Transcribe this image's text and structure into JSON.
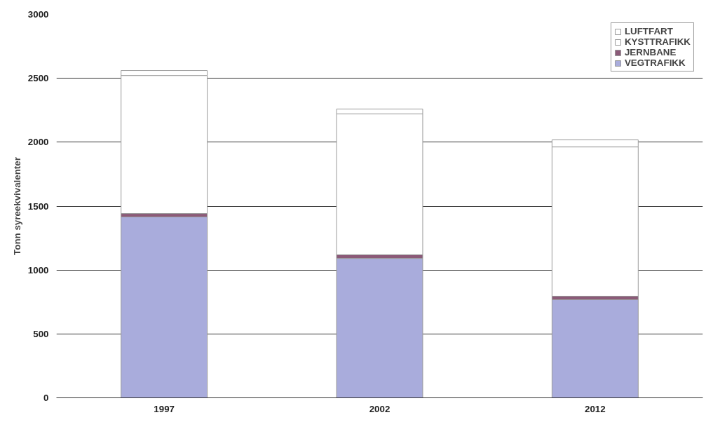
{
  "chart_data": {
    "type": "bar",
    "stacked": true,
    "ylabel": "Tonn syreekvivalenter",
    "categories": [
      "1997",
      "2002",
      "2012"
    ],
    "series": [
      {
        "name": "VEGTRAFIKK",
        "color": "#a9acdc",
        "values": [
          1415,
          1091,
          768
        ]
      },
      {
        "name": "JERNBANE",
        "color": "#8b5a78",
        "values": [
          27,
          28,
          27
        ]
      },
      {
        "name": "KYSTTRAFIKK",
        "color": "#ffffff",
        "values": [
          1080,
          1102,
          1168
        ]
      },
      {
        "name": "LUFTFART",
        "color": "#ffffff",
        "values": [
          39,
          38,
          55
        ]
      }
    ],
    "ylim": [
      0,
      3000
    ],
    "yticks": [
      0,
      500,
      1000,
      1500,
      2000,
      2500,
      3000
    ],
    "grid": "y",
    "legend": "top right"
  }
}
